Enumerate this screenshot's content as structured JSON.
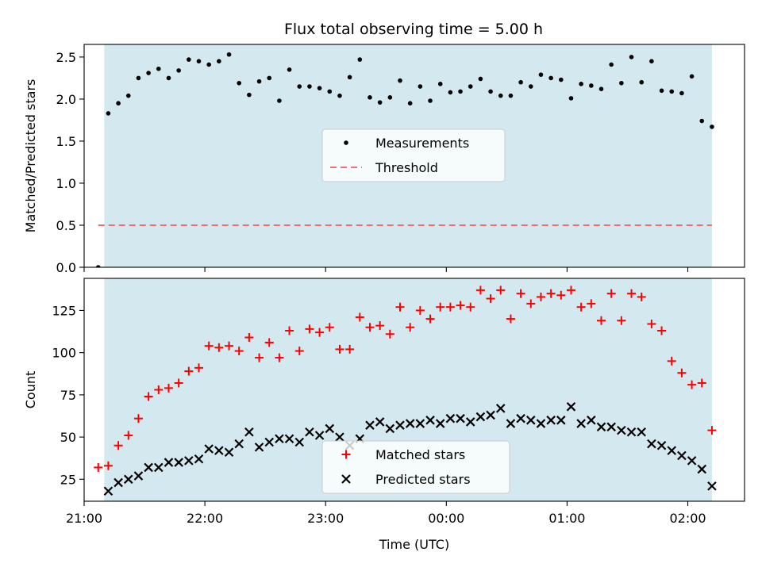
{
  "title": "Flux total observing time = 5.00 h",
  "colors": {
    "shade": "#d3e9ef",
    "measurement": "#000000",
    "threshold": "#f07070",
    "matched": "#ff0000",
    "predicted": "#000000"
  },
  "chart_data": [
    {
      "type": "scatter",
      "ylabel": "Matched/Predicted stars",
      "xlabel": "",
      "xlim": [
        21.0,
        2.47
      ],
      "ylim": [
        0.0,
        2.65
      ],
      "yticks": [
        0.0,
        0.5,
        1.0,
        1.5,
        2.0,
        2.5
      ],
      "ytick_labels": [
        "0.0",
        "0.5",
        "1.0",
        "1.5",
        "2.0",
        "2.5"
      ],
      "x_axis": "time (UTC), hours after 21:00",
      "shaded_range": [
        "21:10",
        "02:12"
      ],
      "legend_position": "center",
      "series": [
        {
          "name": "Measurements",
          "marker": "dot",
          "x": [
            "21:07",
            "21:12",
            "21:17",
            "21:22",
            "21:27",
            "21:32",
            "21:37",
            "21:42",
            "21:47",
            "21:52",
            "21:57",
            "22:02",
            "22:07",
            "22:12",
            "22:17",
            "22:22",
            "22:27",
            "22:32",
            "22:37",
            "22:42",
            "22:47",
            "22:52",
            "22:57",
            "23:02",
            "23:07",
            "23:12",
            "23:17",
            "23:22",
            "23:27",
            "23:32",
            "23:37",
            "23:42",
            "23:47",
            "23:52",
            "23:57",
            "00:02",
            "00:07",
            "00:12",
            "00:17",
            "00:22",
            "00:27",
            "00:32",
            "00:37",
            "00:42",
            "00:47",
            "00:52",
            "00:57",
            "01:02",
            "01:07",
            "01:12",
            "01:17",
            "01:22",
            "01:27",
            "01:32",
            "01:37",
            "01:42",
            "01:47",
            "01:52",
            "01:57",
            "02:02",
            "02:07",
            "02:12"
          ],
          "values": [
            0.0,
            1.83,
            1.95,
            2.04,
            2.25,
            2.31,
            2.36,
            2.25,
            2.34,
            2.47,
            2.45,
            2.41,
            2.45,
            2.53,
            2.19,
            2.05,
            2.21,
            2.25,
            1.98,
            2.35,
            2.15,
            2.15,
            2.13,
            2.09,
            2.04,
            2.26,
            2.47,
            2.02,
            1.96,
            2.02,
            2.22,
            1.95,
            2.15,
            1.98,
            2.18,
            2.08,
            2.09,
            2.15,
            2.24,
            2.09,
            2.04,
            2.04,
            2.2,
            2.15,
            2.29,
            2.25,
            2.23,
            2.01,
            2.18,
            2.16,
            2.12,
            2.41,
            2.19,
            2.5,
            2.2,
            2.45,
            2.1,
            2.09,
            2.07,
            2.27,
            1.74,
            1.67
          ]
        },
        {
          "name": "Threshold",
          "marker": "dashed-line",
          "x": [
            "21:07",
            "02:12"
          ],
          "values": [
            0.5,
            0.5
          ]
        }
      ]
    },
    {
      "type": "scatter",
      "ylabel": "Count",
      "xlabel": "Time (UTC)",
      "xlim": [
        21.0,
        2.47
      ],
      "ylim": [
        12,
        144
      ],
      "yticks": [
        25,
        50,
        75,
        100,
        125
      ],
      "ytick_labels": [
        "25",
        "50",
        "75",
        "100",
        "125"
      ],
      "xticks": [
        "21:00",
        "22:00",
        "23:00",
        "00:00",
        "01:00",
        "02:00"
      ],
      "shaded_range": [
        "21:10",
        "02:12"
      ],
      "legend_position": "lower center",
      "series": [
        {
          "name": "Matched stars",
          "marker": "plus",
          "x": [
            "21:07",
            "21:12",
            "21:17",
            "21:22",
            "21:27",
            "21:32",
            "21:37",
            "21:42",
            "21:47",
            "21:52",
            "21:57",
            "22:02",
            "22:07",
            "22:12",
            "22:17",
            "22:22",
            "22:27",
            "22:32",
            "22:37",
            "22:42",
            "22:47",
            "22:52",
            "22:57",
            "23:02",
            "23:07",
            "23:12",
            "23:17",
            "23:22",
            "23:27",
            "23:32",
            "23:37",
            "23:42",
            "23:47",
            "23:52",
            "23:57",
            "00:02",
            "00:07",
            "00:12",
            "00:17",
            "00:22",
            "00:27",
            "00:32",
            "00:37",
            "00:42",
            "00:47",
            "00:52",
            "00:57",
            "01:02",
            "01:07",
            "01:12",
            "01:17",
            "01:22",
            "01:27",
            "01:32",
            "01:37",
            "01:42",
            "01:47",
            "01:52",
            "01:57",
            "02:02",
            "02:07",
            "02:12"
          ],
          "values": [
            32,
            33,
            45,
            51,
            61,
            74,
            78,
            79,
            82,
            89,
            91,
            104,
            103,
            104,
            101,
            109,
            97,
            106,
            97,
            113,
            101,
            114,
            112,
            115,
            102,
            102,
            121,
            115,
            116,
            111,
            127,
            115,
            125,
            120,
            127,
            127,
            128,
            127,
            137,
            132,
            137,
            120,
            135,
            129,
            133,
            135,
            134,
            137,
            127,
            129,
            119,
            135,
            119,
            135,
            133,
            117,
            113,
            95,
            88,
            81,
            82,
            54
          ]
        },
        {
          "name": "Predicted stars",
          "marker": "x",
          "x": [
            "21:12",
            "21:17",
            "21:22",
            "21:27",
            "21:32",
            "21:37",
            "21:42",
            "21:47",
            "21:52",
            "21:57",
            "22:02",
            "22:07",
            "22:12",
            "22:17",
            "22:22",
            "22:27",
            "22:32",
            "22:37",
            "22:42",
            "22:47",
            "22:52",
            "22:57",
            "23:02",
            "23:07",
            "23:12",
            "23:17",
            "23:22",
            "23:27",
            "23:32",
            "23:37",
            "23:42",
            "23:47",
            "23:52",
            "23:57",
            "00:02",
            "00:07",
            "00:12",
            "00:17",
            "00:22",
            "00:27",
            "00:32",
            "00:37",
            "00:42",
            "00:47",
            "00:52",
            "00:57",
            "01:02",
            "01:07",
            "01:12",
            "01:17",
            "01:22",
            "01:27",
            "01:32",
            "01:37",
            "01:42",
            "01:47",
            "01:52",
            "01:57",
            "02:02",
            "02:07",
            "02:12"
          ],
          "values": [
            18,
            23,
            25,
            27,
            32,
            32,
            35,
            35,
            36,
            37,
            43,
            42,
            41,
            46,
            53,
            44,
            47,
            49,
            49,
            47,
            53,
            51,
            55,
            50,
            45,
            49,
            57,
            59,
            55,
            57,
            58,
            58,
            60,
            58,
            61,
            61,
            59,
            62,
            63,
            67,
            58,
            61,
            60,
            58,
            60,
            60,
            68,
            58,
            60,
            56,
            56,
            54,
            53,
            53,
            46,
            45,
            42,
            39,
            36,
            31,
            21
          ]
        }
      ]
    }
  ]
}
